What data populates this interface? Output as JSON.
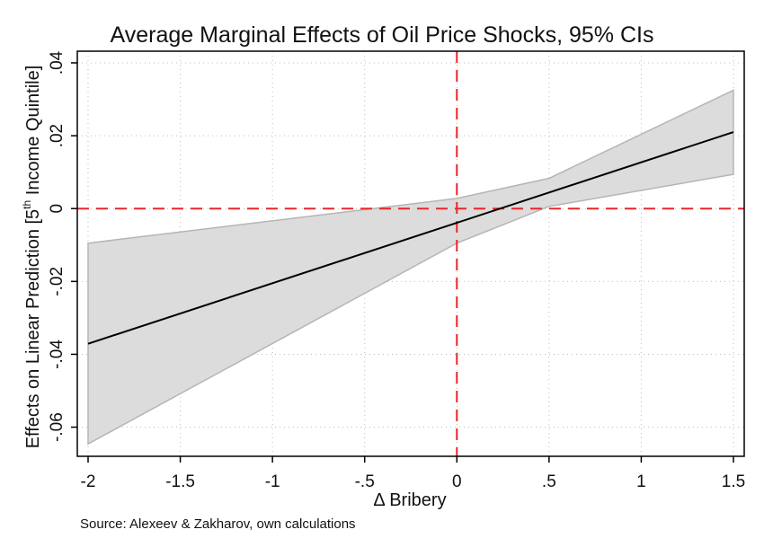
{
  "chart_data": {
    "type": "line",
    "title": "Average Marginal Effects of Oil Price Shocks, 95% CIs",
    "xlabel": "Δ Bribery",
    "ylabel": {
      "before": "Effects on Linear Prediction [5",
      "superscript": "th",
      "after": " Income Quintile]"
    },
    "note": "Source: Alexeev & Zakharov, own calculations",
    "xlim": [
      -2,
      1.5
    ],
    "ylim": [
      -0.068,
      0.0432
    ],
    "xticks": [
      -2,
      -1.5,
      -1,
      -0.5,
      0,
      0.5,
      1,
      1.5
    ],
    "xtick_labels": [
      "-2",
      "-1.5",
      "-1",
      "-.5",
      "0",
      ".5",
      "1",
      "1.5"
    ],
    "yticks": [
      -0.06,
      -0.04,
      -0.02,
      0,
      0.02,
      0.04
    ],
    "ytick_labels": [
      "-.06",
      "-.04",
      "-.02",
      "0",
      ".02",
      ".04"
    ],
    "grid": true,
    "reference_lines": {
      "x": 0,
      "y": 0,
      "color": "#e8262b",
      "style": "dashed"
    },
    "series": [
      {
        "x": [
          -2,
          1.5
        ],
        "y": [
          -0.0371,
          0.021
        ],
        "ci_lower": [
          -0.0646,
          0.0094
        ],
        "ci_upper": [
          -0.0095,
          0.0325
        ],
        "ci_breaks": [
          {
            "x": 0,
            "lower": -0.0095,
            "upper": 0.0028
          },
          {
            "x": 0.5,
            "lower": 0.0006,
            "upper": 0.0083
          }
        ],
        "color": "#000000",
        "ci_color": "#dcdcdc"
      }
    ]
  }
}
